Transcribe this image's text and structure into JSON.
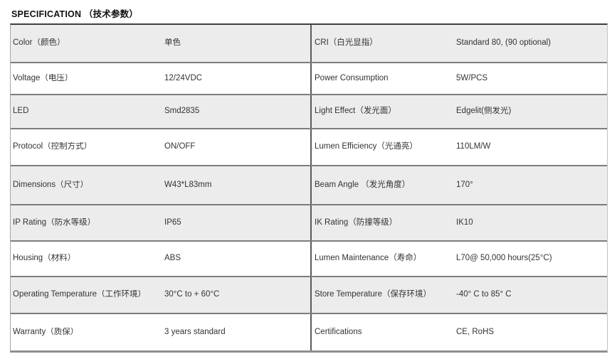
{
  "title": "SPECIFICATION （技术参数）",
  "colors": {
    "shaded_row": "#ececec",
    "row_border": "#7d7d7d",
    "top_border": "#3f3f3f",
    "text": "#333333"
  },
  "rows": [
    {
      "ll": "Color（颜色）",
      "lv": "单色",
      "rl": "CRI（白光显指）",
      "rv": "Standard 80, (90 optional)"
    },
    {
      "ll": "Voltage（电压）",
      "lv": "12/24VDC",
      "rl": "Power Consumption",
      "rv": "5W/PCS"
    },
    {
      "ll": "LED",
      "lv": "Smd2835",
      "rl": "Light Effect（发光面）",
      "rv": "Edgelit(侧发光)"
    },
    {
      "ll": "Protocol（控制方式）",
      "lv": "ON/OFF",
      "rl": "Lumen Efficiency（光通亮）",
      "rv": "110LM/W"
    },
    {
      "ll": "Dimensions（尺寸）",
      "lv": "W43*L83mm",
      "rl": "Beam Angle （发光角度）",
      "rv": "170°"
    },
    {
      "ll": "IP Rating（防水等级）",
      "lv": "IP65",
      "rl": "IK Rating（防撞等级）",
      "rv": "IK10"
    },
    {
      "ll": "Housing（材料）",
      "lv": "ABS",
      "rl": "Lumen Maintenance（寿命）",
      "rv": "L70@ 50,000 hours(25°C)"
    },
    {
      "ll": "Operating Temperature（工作环境）",
      "lv": "30°C to + 60°C",
      "rl": "Store Temperature（保存环境）",
      "rv": "-40° C to 85° C"
    },
    {
      "ll": "Warranty（质保）",
      "lv": "3 years standard",
      "rl": "Certifications",
      "rv": "CE, RoHS"
    }
  ]
}
